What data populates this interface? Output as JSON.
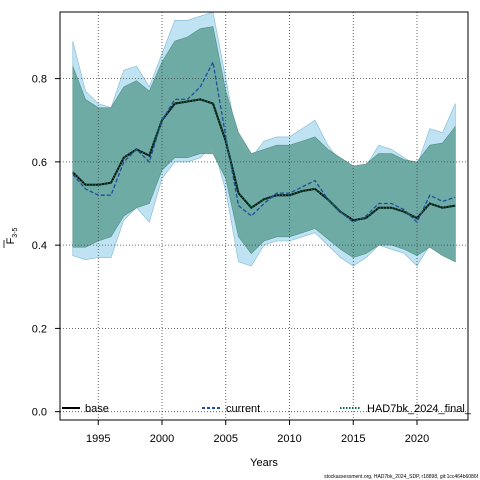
{
  "chart_data": {
    "type": "line",
    "xlabel": "Years",
    "ylabel_main": "F",
    "ylabel_sub": "3-5",
    "xlim": [
      1992,
      2024
    ],
    "ylim": [
      -0.02,
      0.96
    ],
    "x_ticks": [
      1995,
      2000,
      2005,
      2010,
      2015,
      2020
    ],
    "y_ticks": [
      0.0,
      0.2,
      0.4,
      0.6,
      0.8
    ],
    "y_tick_labels": [
      "0.0",
      "0.2",
      "0.4",
      "0.6",
      "0.8"
    ],
    "grid": true,
    "legend_position": "bottom",
    "footer_text": "stockassessment.org, HAD7bk_2024_SDP, r18898, git:1cc464b6086f",
    "years": [
      1993,
      1994,
      1995,
      1996,
      1997,
      1998,
      1999,
      2000,
      2001,
      2002,
      2003,
      2004,
      2005,
      2006,
      2007,
      2008,
      2009,
      2010,
      2011,
      2012,
      2013,
      2014,
      2015,
      2016,
      2017,
      2018,
      2019,
      2020,
      2021,
      2022,
      2023
    ],
    "series": [
      {
        "name": "base",
        "style": "solid",
        "color": "#000000",
        "values": [
          0.575,
          0.545,
          0.545,
          0.55,
          0.61,
          0.63,
          0.615,
          0.7,
          0.74,
          0.745,
          0.75,
          0.74,
          0.65,
          0.525,
          0.49,
          0.51,
          0.52,
          0.52,
          0.53,
          0.535,
          0.51,
          0.48,
          0.46,
          0.465,
          0.49,
          0.49,
          0.48,
          0.465,
          0.5,
          0.49,
          0.495
        ],
        "lower": [
          0.395,
          0.395,
          0.41,
          0.42,
          0.47,
          0.49,
          0.5,
          0.58,
          0.61,
          0.61,
          0.62,
          0.62,
          0.56,
          0.42,
          0.38,
          0.41,
          0.42,
          0.42,
          0.43,
          0.44,
          0.415,
          0.39,
          0.37,
          0.38,
          0.4,
          0.4,
          0.39,
          0.375,
          0.395,
          0.375,
          0.36
        ],
        "upper": [
          0.83,
          0.75,
          0.73,
          0.73,
          0.78,
          0.795,
          0.77,
          0.84,
          0.89,
          0.9,
          0.92,
          0.925,
          0.77,
          0.67,
          0.62,
          0.63,
          0.64,
          0.64,
          0.65,
          0.66,
          0.63,
          0.61,
          0.59,
          0.595,
          0.62,
          0.62,
          0.605,
          0.6,
          0.64,
          0.645,
          0.685
        ],
        "band_color": "#6aa8a0"
      },
      {
        "name": "current",
        "style": "dashed",
        "color": "#1f4e9c",
        "values": [
          0.57,
          0.535,
          0.52,
          0.52,
          0.6,
          0.63,
          0.6,
          0.7,
          0.75,
          0.75,
          0.78,
          0.84,
          0.66,
          0.495,
          0.47,
          0.5,
          0.525,
          0.525,
          0.54,
          0.555,
          0.51,
          0.48,
          0.455,
          0.47,
          0.5,
          0.5,
          0.485,
          0.455,
          0.52,
          0.505,
          0.515
        ],
        "lower": [
          0.375,
          0.365,
          0.37,
          0.37,
          0.46,
          0.49,
          0.455,
          0.56,
          0.6,
          0.6,
          0.61,
          0.64,
          0.53,
          0.36,
          0.35,
          0.4,
          0.41,
          0.41,
          0.42,
          0.43,
          0.4,
          0.37,
          0.35,
          0.37,
          0.4,
          0.39,
          0.38,
          0.35,
          0.4,
          0.38,
          0.36
        ],
        "upper": [
          0.89,
          0.77,
          0.74,
          0.73,
          0.82,
          0.83,
          0.78,
          0.86,
          0.94,
          0.94,
          0.95,
          0.96,
          0.8,
          0.64,
          0.61,
          0.65,
          0.66,
          0.66,
          0.68,
          0.7,
          0.64,
          0.6,
          0.58,
          0.59,
          0.64,
          0.63,
          0.61,
          0.59,
          0.68,
          0.67,
          0.74
        ],
        "band_color": "#bfe3f2"
      },
      {
        "name": "HAD7bk_2024_final_",
        "style": "dotted",
        "color": "#0e6b4f",
        "values": [
          0.575,
          0.545,
          0.545,
          0.55,
          0.61,
          0.63,
          0.615,
          0.7,
          0.74,
          0.745,
          0.75,
          0.74,
          0.65,
          0.525,
          0.49,
          0.51,
          0.52,
          0.52,
          0.53,
          0.535,
          0.51,
          0.48,
          0.46,
          0.465,
          0.49,
          0.49,
          0.48,
          0.465,
          0.5,
          0.49,
          0.495
        ]
      }
    ]
  }
}
